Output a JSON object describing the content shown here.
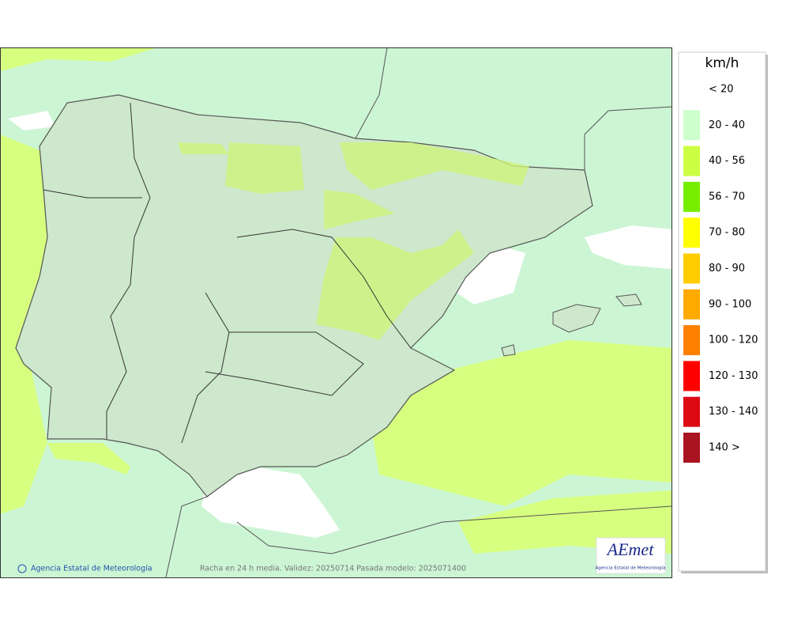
{
  "legend": {
    "title": "km/h",
    "items": [
      {
        "label": "< 20",
        "color": "#ffffff"
      },
      {
        "label": "20 - 40",
        "color": "#ccffcc"
      },
      {
        "label": "40 - 56",
        "color": "#ccff44"
      },
      {
        "label": "56 - 70",
        "color": "#77ee00"
      },
      {
        "label": "70 - 80",
        "color": "#ffff00"
      },
      {
        "label": "80 - 90",
        "color": "#ffcc00"
      },
      {
        "label": "90 - 100",
        "color": "#ffaa00"
      },
      {
        "label": "100 - 120",
        "color": "#ff8000"
      },
      {
        "label": "120 - 130",
        "color": "#ff0000"
      },
      {
        "label": "130 - 140",
        "color": "#dd0a14"
      },
      {
        "label": "140 >",
        "color": "#aa1420"
      }
    ]
  },
  "footer": {
    "credit": "Agencia Estatal de Meteorología",
    "caption": "Racha en 24 h media. Validez: 20250714 Pasada modelo: 2025071400"
  },
  "logo": {
    "name": "AEmet",
    "subtitle": "Agencia Estatal de Meteorología"
  }
}
